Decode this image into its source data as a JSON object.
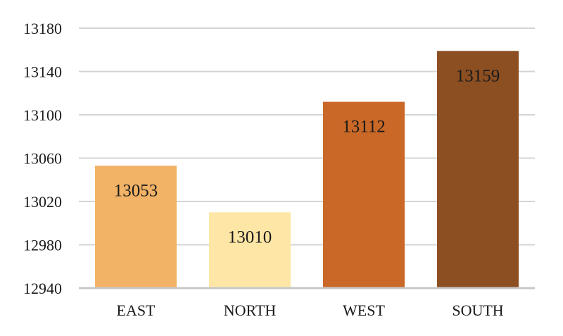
{
  "chart_data": {
    "type": "bar",
    "title": "",
    "xlabel": "",
    "ylabel": "",
    "categories": [
      "EAST",
      "NORTH",
      "WEST",
      "SOUTH"
    ],
    "values": [
      13053,
      13010,
      13112,
      13159
    ],
    "value_labels": [
      "13053",
      "13010",
      "13112",
      "13159"
    ],
    "colors": [
      "#F2B366",
      "#FDE6A6",
      "#CA6827",
      "#8C4F22"
    ],
    "ylim": [
      12940,
      13180
    ],
    "yticks": [
      12940,
      12980,
      13020,
      13060,
      13100,
      13140,
      13180
    ],
    "ytick_labels": [
      "12940",
      "12980",
      "13020",
      "13060",
      "13100",
      "13140",
      "13180"
    ],
    "grid": true,
    "legend": "none"
  }
}
